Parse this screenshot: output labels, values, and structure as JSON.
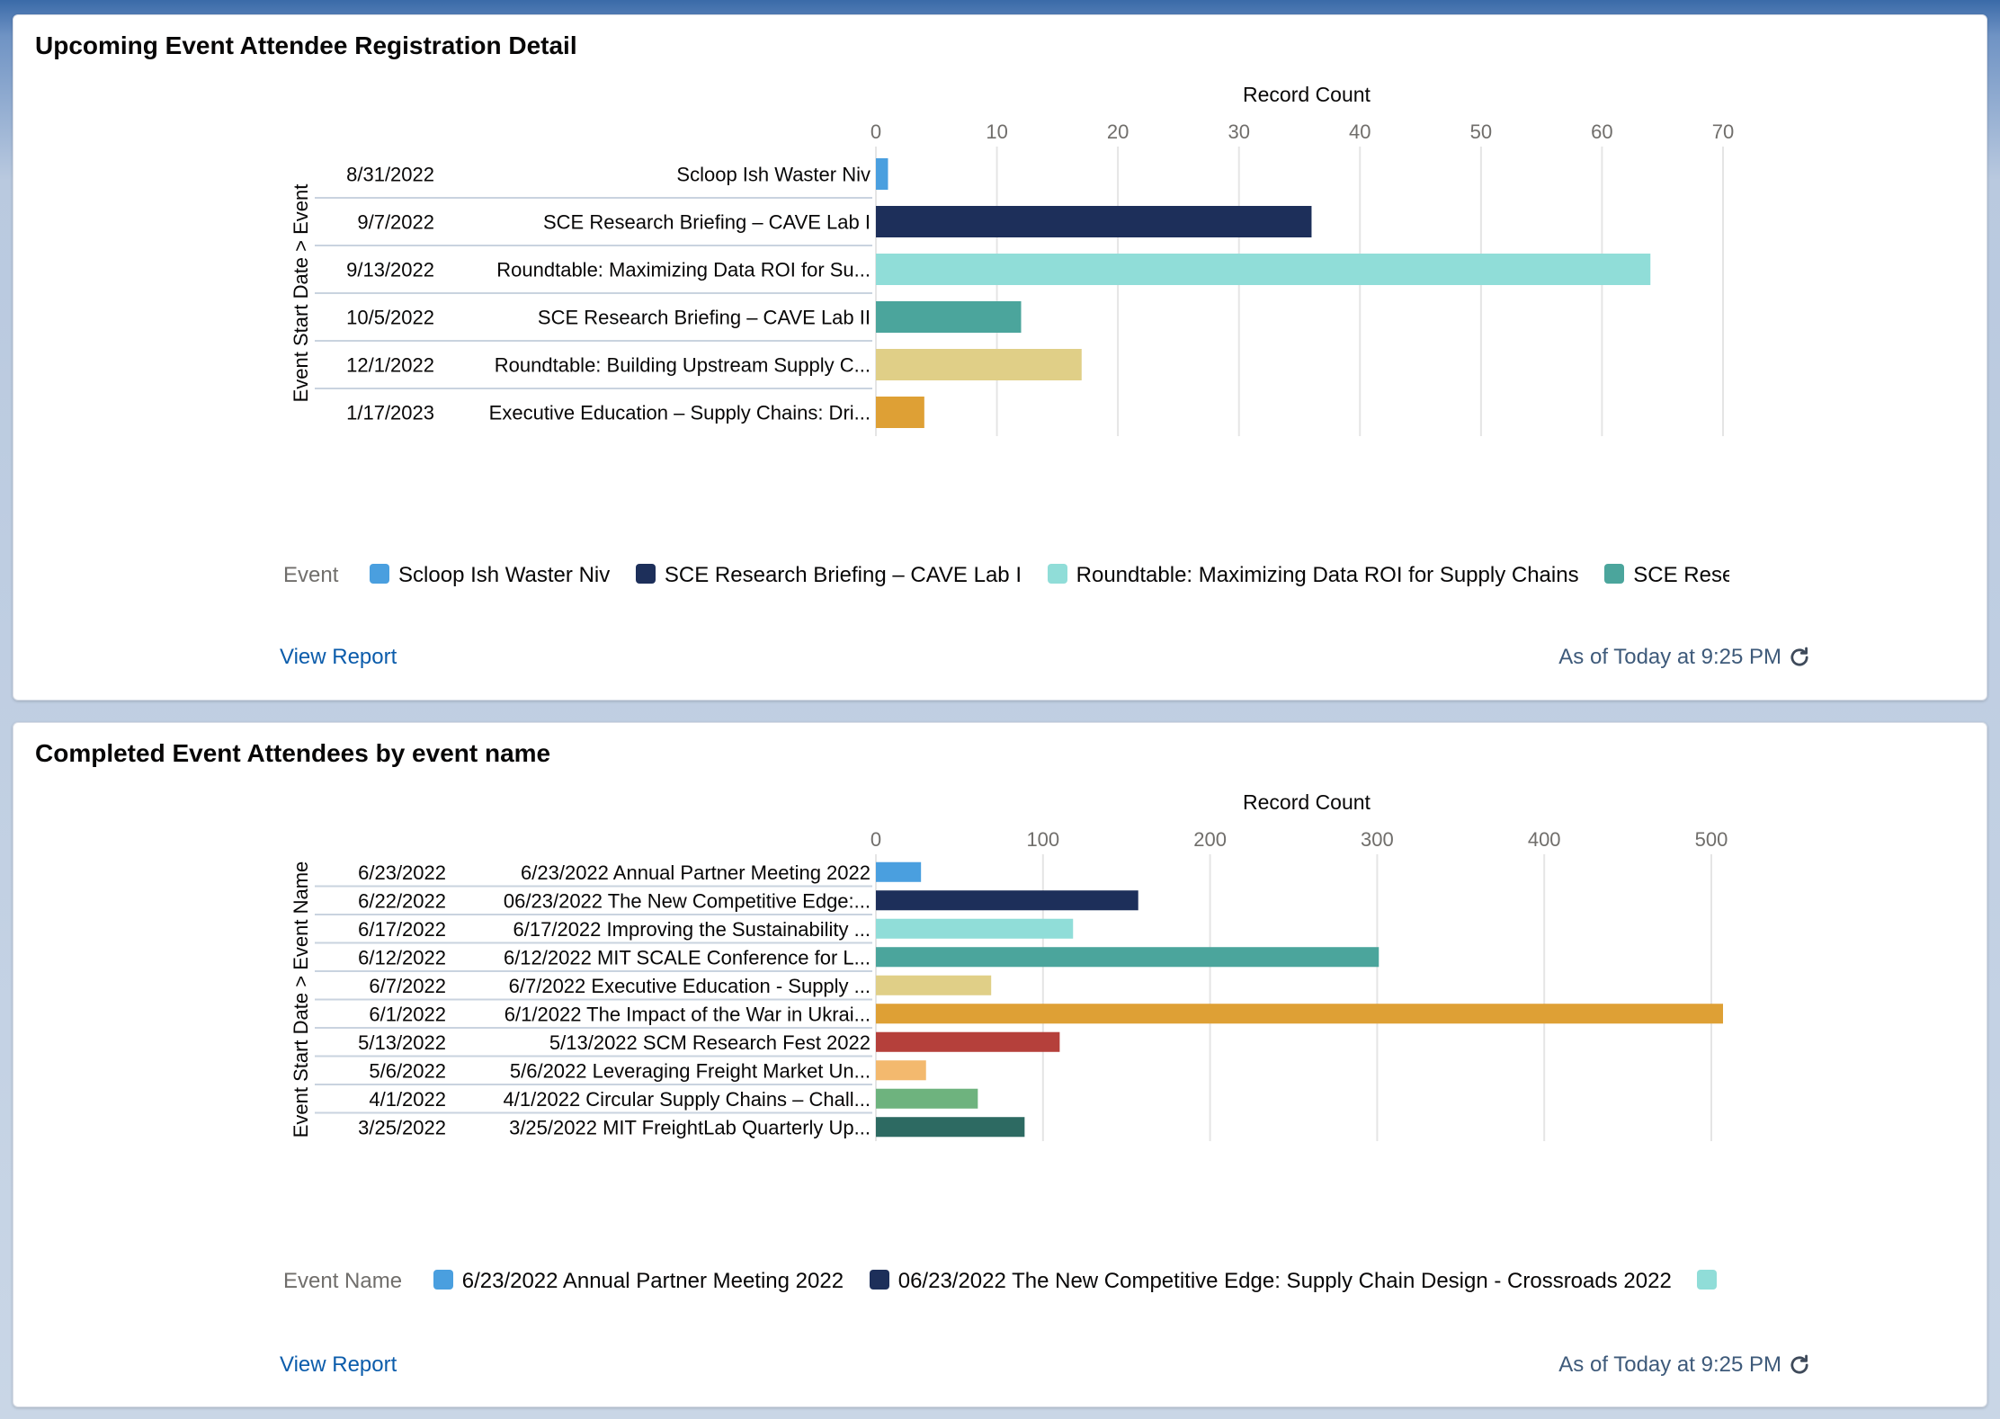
{
  "dashboard": {
    "cards": [
      {
        "title": "Upcoming Event Attendee Registration Detail",
        "view_report_label": "View Report",
        "timestamp": "As of Today at 9:25 PM",
        "refresh_icon": "refresh-icon",
        "legend_title": "Event",
        "legend_items": [
          {
            "label": "Scloop Ish Waster Niv",
            "color": "#4a9fdf"
          },
          {
            "label": "SCE Research Briefing – CAVE Lab I",
            "color": "#1d2f5a"
          },
          {
            "label": "Roundtable: Maximizing Data ROI for Supply Chains",
            "color": "#90ddd8"
          },
          {
            "label": "SCE Resea",
            "color": "#4ba59c"
          }
        ]
      },
      {
        "title": "Completed Event Attendees by event name",
        "view_report_label": "View Report",
        "timestamp": "As of Today at 9:25 PM",
        "refresh_icon": "refresh-icon",
        "legend_title": "Event Name",
        "legend_items": [
          {
            "label": "6/23/2022 Annual Partner Meeting 2022",
            "color": "#4a9fdf"
          },
          {
            "label": "06/23/2022 The New Competitive Edge: Supply Chain Design - Crossroads 2022",
            "color": "#1d2f5a"
          },
          {
            "label": "",
            "color": "#90ddd8"
          }
        ]
      }
    ]
  },
  "chart_data": [
    {
      "type": "bar",
      "orientation": "horizontal",
      "title": "Upcoming Event Attendee Registration Detail",
      "xlabel": "Record Count",
      "ylabel": "Event Start Date > Event",
      "xlim": [
        0,
        70
      ],
      "xticks": [
        0,
        10,
        20,
        30,
        40,
        50,
        60,
        70
      ],
      "grid": true,
      "legend_position": "bottom",
      "categories": [
        {
          "date": "8/31/2022",
          "name": "Scloop Ish Waster Niv"
        },
        {
          "date": "9/7/2022",
          "name": "SCE Research Briefing – CAVE Lab I"
        },
        {
          "date": "9/13/2022",
          "name": "Roundtable: Maximizing Data ROI for Su..."
        },
        {
          "date": "10/5/2022",
          "name": "SCE Research Briefing – CAVE Lab II"
        },
        {
          "date": "12/1/2022",
          "name": "Roundtable: Building Upstream Supply C..."
        },
        {
          "date": "1/17/2023",
          "name": "Executive Education – Supply Chains: Dri..."
        }
      ],
      "values": [
        1,
        36,
        64,
        12,
        17,
        4
      ],
      "colors": [
        "#4a9fdf",
        "#1d2f5a",
        "#90ddd8",
        "#4ba59c",
        "#e0cf87",
        "#dea035"
      ]
    },
    {
      "type": "bar",
      "orientation": "horizontal",
      "title": "Completed Event Attendees by event name",
      "xlabel": "Record Count",
      "ylabel": "Event Start Date > Event Name",
      "xlim": [
        0,
        507
      ],
      "xticks": [
        0,
        100,
        200,
        300,
        400,
        500
      ],
      "grid": true,
      "legend_position": "bottom",
      "categories": [
        {
          "date": "6/23/2022",
          "name": "6/23/2022 Annual Partner Meeting 2022"
        },
        {
          "date": "6/22/2022",
          "name": "06/23/2022 The New Competitive Edge:..."
        },
        {
          "date": "6/17/2022",
          "name": "6/17/2022 Improving the Sustainability ..."
        },
        {
          "date": "6/12/2022",
          "name": "6/12/2022 MIT SCALE Conference for L..."
        },
        {
          "date": "6/7/2022",
          "name": "6/7/2022 Executive Education - Supply ..."
        },
        {
          "date": "6/1/2022",
          "name": "6/1/2022 The Impact of the War in Ukrai..."
        },
        {
          "date": "5/13/2022",
          "name": "5/13/2022 SCM Research Fest 2022"
        },
        {
          "date": "5/6/2022",
          "name": "5/6/2022 Leveraging Freight Market Un..."
        },
        {
          "date": "4/1/2022",
          "name": "4/1/2022 Circular Supply Chains – Chall..."
        },
        {
          "date": "3/25/2022",
          "name": "3/25/2022 MIT FreightLab Quarterly Up..."
        }
      ],
      "values": [
        27,
        157,
        118,
        301,
        69,
        507,
        110,
        30,
        61,
        89
      ],
      "colors": [
        "#4a9fdf",
        "#1d2f5a",
        "#90ddd8",
        "#4ba59c",
        "#e0cf87",
        "#dea035",
        "#b5403b",
        "#f3b96e",
        "#6eb37e",
        "#2d6a62"
      ]
    }
  ]
}
